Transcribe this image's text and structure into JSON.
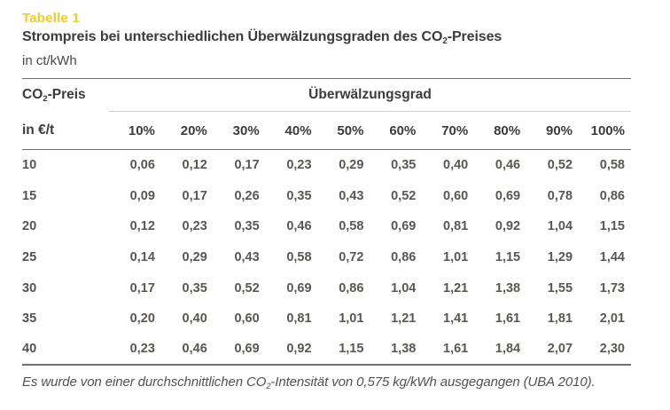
{
  "header": {
    "table_label": "Tabelle 1",
    "title_prefix": "Strompreis bei unterschiedlichen Überwälzungsgraden des CO",
    "title_sub": "2",
    "title_suffix": "-Preises",
    "unit_line": "in ct/kWh"
  },
  "table": {
    "row_header": {
      "line1_prefix": "CO",
      "line1_sub": "2",
      "line1_suffix": "-Preis",
      "line2": "in €/t"
    },
    "col_group_label": "Überwälzungsgrad",
    "columns": [
      "10%",
      "20%",
      "30%",
      "40%",
      "50%",
      "60%",
      "70%",
      "80%",
      "90%",
      "100%"
    ],
    "rows": [
      {
        "label": "10",
        "values": [
          "0,06",
          "0,12",
          "0,17",
          "0,23",
          "0,29",
          "0,35",
          "0,40",
          "0,46",
          "0,52",
          "0,58"
        ]
      },
      {
        "label": "15",
        "values": [
          "0,09",
          "0,17",
          "0,26",
          "0,35",
          "0,43",
          "0,52",
          "0,60",
          "0,69",
          "0,78",
          "0,86"
        ]
      },
      {
        "label": "20",
        "values": [
          "0,12",
          "0,23",
          "0,35",
          "0,46",
          "0,58",
          "0,69",
          "0,81",
          "0,92",
          "1,04",
          "1,15"
        ]
      },
      {
        "label": "25",
        "values": [
          "0,14",
          "0,29",
          "0,43",
          "0,58",
          "0,72",
          "0,86",
          "1,01",
          "1,15",
          "1,29",
          "1,44"
        ]
      },
      {
        "label": "30",
        "values": [
          "0,17",
          "0,35",
          "0,52",
          "0,69",
          "0,86",
          "1,04",
          "1,21",
          "1,38",
          "1,55",
          "1,73"
        ]
      },
      {
        "label": "35",
        "values": [
          "0,20",
          "0,40",
          "0,60",
          "0,81",
          "1,01",
          "1,21",
          "1,41",
          "1,61",
          "1,81",
          "2,01"
        ]
      },
      {
        "label": "40",
        "values": [
          "0,23",
          "0,46",
          "0,69",
          "0,92",
          "1,15",
          "1,38",
          "1,61",
          "1,84",
          "2,07",
          "2,30"
        ]
      }
    ]
  },
  "footnote": {
    "prefix": "Es wurde von einer durchschnittlichen CO",
    "sub": "2",
    "suffix": "-Intensität von 0,575 kg/kWh ausgegangen (UBA 2010)."
  },
  "colors": {
    "accent_yellow": "#F2CA2A",
    "rule_yellow": "#EFD44B",
    "rule_gray": "#6F6E6C",
    "text_dark": "#3C3B39",
    "text_gray": "#5A5752"
  }
}
